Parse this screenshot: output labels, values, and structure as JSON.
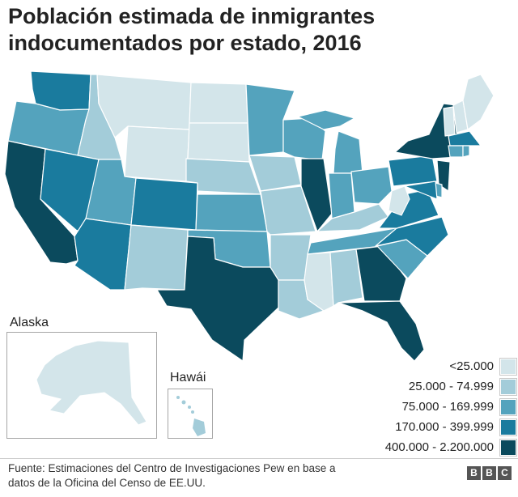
{
  "title": "Población estimada de inmigrantes indocumentados por estado, 2016",
  "colors": {
    "c1": "#d3e5ea",
    "c2": "#a3ccd9",
    "c3": "#54a3bd",
    "c4": "#1a7b9e",
    "c5": "#0b4a5d"
  },
  "legend": [
    {
      "label": "<25.000",
      "color": "#d3e5ea"
    },
    {
      "label": "25.000 - 74.999",
      "color": "#a3ccd9"
    },
    {
      "label": "75.000 - 169.999",
      "color": "#54a3bd"
    },
    {
      "label": "170.000 - 399.999",
      "color": "#1a7b9e"
    },
    {
      "label": "400.000 - 2.200.000",
      "color": "#0b4a5d"
    }
  ],
  "insets": {
    "alaska": "Alaska",
    "hawaii": "Hawái"
  },
  "source": "Fuente: Estimaciones del Centro de Investigaciones Pew en base a datos de la Oficina del Censo de EE.UU.",
  "logo": [
    "B",
    "B",
    "C"
  ],
  "states": {
    "WA": "c4",
    "OR": "c3",
    "CA": "c5",
    "NV": "c4",
    "ID": "c2",
    "MT": "c1",
    "WY": "c1",
    "UT": "c3",
    "AZ": "c4",
    "CO": "c4",
    "NM": "c2",
    "ND": "c1",
    "SD": "c1",
    "NE": "c2",
    "KS": "c3",
    "OK": "c3",
    "TX": "c5",
    "MN": "c3",
    "IA": "c2",
    "MO": "c2",
    "AR": "c2",
    "LA": "c2",
    "WI": "c3",
    "IL": "c5",
    "MI": "c3",
    "IN": "c3",
    "OH": "c3",
    "KY": "c2",
    "TN": "c3",
    "MS": "c1",
    "AL": "c2",
    "GA": "c5",
    "FL": "c5",
    "SC": "c3",
    "NC": "c4",
    "VA": "c4",
    "WV": "c1",
    "PA": "c4",
    "NY": "c5",
    "NJ": "c5",
    "DE": "c3",
    "MD": "c4",
    "ME": "c1",
    "VT": "c1",
    "NH": "c1",
    "MA": "c4",
    "CT": "c3",
    "RI": "c3",
    "AK": "c1",
    "HI": "c2"
  }
}
